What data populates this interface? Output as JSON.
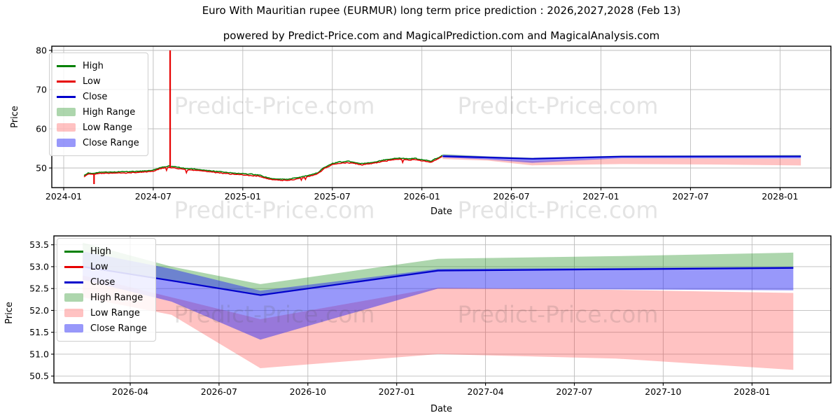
{
  "figure": {
    "title": "Euro With Mauritian rupee (EURMUR) long term price prediction : 2026,2027,2028 (Feb 13)",
    "subtitle": "powered by Predict-Price.com and MagicalPrediction.com and MagicalAnalysis.com"
  },
  "watermark": {
    "text": "Predict-Price.com"
  },
  "colors": {
    "high_line": "#008000",
    "low_line": "#e60000",
    "close_line": "#0000cc",
    "high_range_fill": "rgba(0,128,0,0.32)",
    "low_range_fill": "rgba(255,30,30,0.27)",
    "close_range_fill": "rgba(40,40,245,0.48)",
    "grid": "#bdbdbd",
    "spine": "#000000"
  },
  "legend": {
    "items": [
      {
        "label": "High",
        "type": "line",
        "color": "#008000"
      },
      {
        "label": "Low",
        "type": "line",
        "color": "#e60000"
      },
      {
        "label": "Close",
        "type": "line",
        "color": "#0000cc"
      },
      {
        "label": "High Range",
        "type": "patch",
        "color": "rgba(0,128,0,0.32)"
      },
      {
        "label": "Low Range",
        "type": "patch",
        "color": "rgba(255,30,30,0.27)"
      },
      {
        "label": "Close Range",
        "type": "patch",
        "color": "rgba(40,40,245,0.48)"
      }
    ]
  },
  "chart_data": [
    {
      "type": "line",
      "panel": "top",
      "xlabel": "Date",
      "ylabel": "Price",
      "ylim": [
        45.0,
        81.1
      ],
      "yticks": [
        "50",
        "60",
        "70",
        "80"
      ],
      "xticks": [
        "2024-01",
        "2024-07",
        "2025-01",
        "2025-07",
        "2026-01",
        "2026-07",
        "2027-01",
        "2027-07",
        "2028-01"
      ],
      "history": {
        "dates": [
          "2024-02-12",
          "2024-02-20",
          "2024-03-01",
          "2024-03-15",
          "2024-04-01",
          "2024-05-01",
          "2024-06-01",
          "2024-07-01",
          "2024-07-15",
          "2024-08-01",
          "2024-08-15",
          "2024-09-01",
          "2024-10-01",
          "2024-11-01",
          "2024-12-01",
          "2025-01-01",
          "2025-02-01",
          "2025-02-15",
          "2025-03-01",
          "2025-04-01",
          "2025-05-01",
          "2025-06-01",
          "2025-06-15",
          "2025-07-01",
          "2025-07-15",
          "2025-08-01",
          "2025-08-15",
          "2025-09-01",
          "2025-09-15",
          "2025-10-01",
          "2025-10-15",
          "2025-11-01",
          "2025-11-15",
          "2025-12-01",
          "2025-12-15",
          "2026-01-01",
          "2026-01-20",
          "2026-02-01",
          "2026-02-13"
        ],
        "close": [
          47.9,
          48.6,
          48.5,
          48.8,
          48.8,
          48.9,
          49.0,
          49.3,
          50.0,
          50.3,
          50.2,
          49.8,
          49.5,
          49.1,
          48.7,
          48.4,
          48.1,
          47.6,
          47.1,
          47.0,
          47.6,
          48.6,
          50.0,
          51.0,
          51.4,
          51.5,
          51.3,
          51.0,
          51.2,
          51.5,
          51.9,
          52.2,
          52.4,
          52.2,
          52.3,
          52.0,
          51.6,
          52.3,
          53.1
        ]
      },
      "spikes": [
        {
          "date": "2024-08-05",
          "from": 50.0,
          "to": 80.0
        },
        {
          "date": "2024-03-02",
          "from": 48.4,
          "to": 45.9
        }
      ],
      "prediction": {
        "x": [
          "2026-02-13",
          "2026-05-13",
          "2026-08-13",
          "2027-02-13",
          "2027-08-13",
          "2028-02-13"
        ],
        "series": [
          {
            "name": "Close",
            "values": [
              53.0,
              52.68,
              52.35,
              52.91,
              52.94,
              52.97
            ]
          },
          {
            "name": "Close Range Top",
            "values": [
              53.35,
              52.95,
              52.45,
              52.95,
              52.97,
              53.0
            ]
          },
          {
            "name": "Close Range Bottom",
            "values": [
              52.7,
              52.2,
              51.33,
              52.5,
              52.48,
              52.46
            ]
          },
          {
            "name": "High Range Top",
            "values": [
              53.55,
              53.0,
              52.6,
              53.18,
              53.24,
              53.32
            ]
          },
          {
            "name": "Low Range Top",
            "values": [
              52.8,
              52.3,
              51.8,
              52.52,
              52.47,
              52.4
            ]
          },
          {
            "name": "Low Range Bottom",
            "values": [
              52.3,
              51.9,
              50.68,
              51.0,
              50.9,
              50.64
            ]
          }
        ]
      }
    },
    {
      "type": "area",
      "panel": "bottom",
      "xlabel": "Date",
      "ylabel": "Price",
      "ylim": [
        50.34,
        53.7
      ],
      "yticks": [
        "50.5",
        "51.0",
        "51.5",
        "52.0",
        "52.5",
        "53.0",
        "53.5"
      ],
      "xticks": [
        "2026-04",
        "2026-07",
        "2026-10",
        "2027-01",
        "2027-04",
        "2027-07",
        "2027-10",
        "2028-01"
      ],
      "x": [
        "2026-02-13",
        "2026-05-13",
        "2026-08-13",
        "2027-02-13",
        "2027-08-13",
        "2028-02-13"
      ],
      "series": [
        {
          "name": "Close",
          "values": [
            53.0,
            52.68,
            52.35,
            52.91,
            52.94,
            52.97
          ]
        },
        {
          "name": "Close Range Top",
          "values": [
            53.35,
            52.95,
            52.45,
            52.95,
            52.97,
            53.0
          ]
        },
        {
          "name": "Close Range Bottom",
          "values": [
            52.7,
            52.2,
            51.33,
            52.5,
            52.48,
            52.46
          ]
        },
        {
          "name": "High Range Top",
          "values": [
            53.55,
            53.0,
            52.6,
            53.18,
            53.24,
            53.32
          ]
        },
        {
          "name": "Low Range Top",
          "values": [
            52.8,
            52.3,
            51.8,
            52.52,
            52.47,
            52.4
          ]
        },
        {
          "name": "Low Range Bottom",
          "values": [
            52.3,
            51.9,
            50.68,
            51.0,
            50.9,
            50.64
          ]
        }
      ]
    }
  ]
}
